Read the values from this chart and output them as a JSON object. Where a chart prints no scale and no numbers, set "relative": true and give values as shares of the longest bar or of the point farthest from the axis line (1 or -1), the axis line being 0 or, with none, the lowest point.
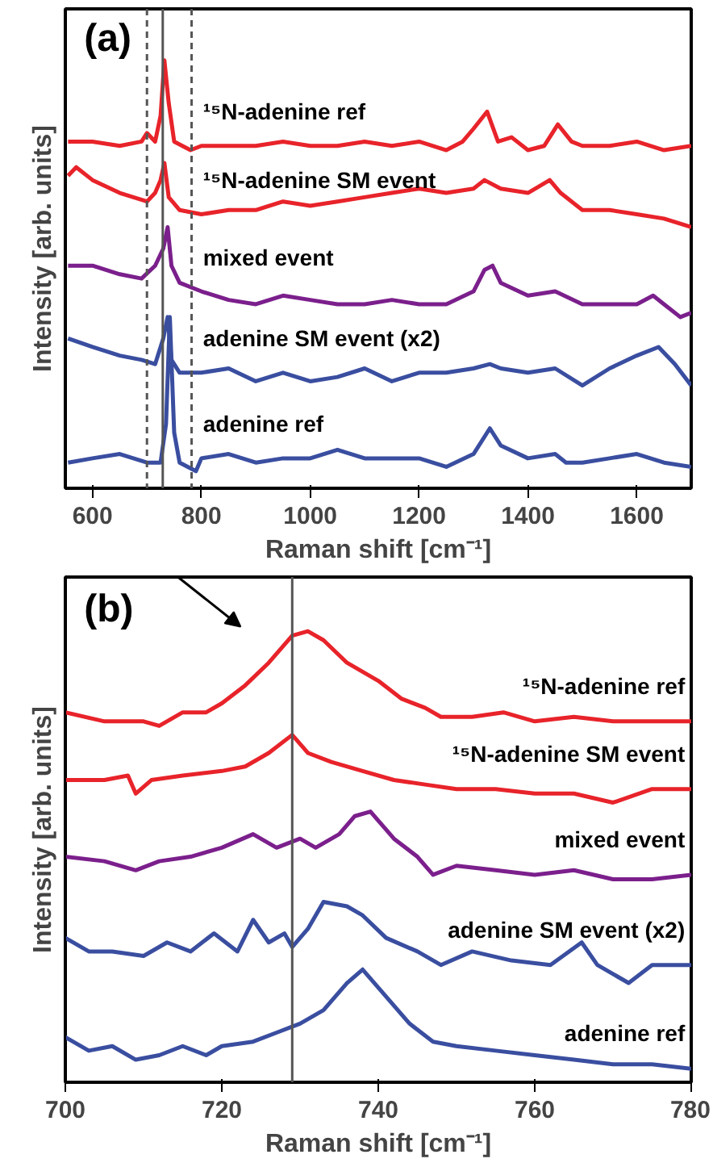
{
  "chart_data": [
    {
      "type": "line",
      "relative": true,
      "xlabel": "Raman shift [cm⁻¹]",
      "ylabel": "Intensity [arb. units]",
      "xlim": [
        550,
        1700
      ],
      "xticks": [
        600,
        800,
        1000,
        1200,
        1400,
        1600
      ],
      "tick_labels": "x",
      "annotations": [
        "(a)"
      ],
      "ref_lines": [
        {
          "axis": "x",
          "value": 700,
          "line_style": "dashed",
          "color": "#555555"
        },
        {
          "axis": "x",
          "value": 782,
          "line_style": "dashed",
          "color": "#555555"
        },
        {
          "axis": "x",
          "value": 729,
          "line_style": "solid",
          "color": "#555555"
        }
      ],
      "series": [
        {
          "name": "¹⁵N-adenine ref",
          "color": "#e8232a",
          "x": [
            555,
            600,
            650,
            690,
            700,
            715,
            725,
            732,
            740,
            750,
            780,
            800,
            850,
            900,
            950,
            1000,
            1050,
            1100,
            1150,
            1200,
            1250,
            1280,
            1300,
            1325,
            1345,
            1370,
            1400,
            1430,
            1455,
            1480,
            1500,
            1550,
            1600,
            1650,
            1700
          ],
          "values": [
            0.81,
            0.81,
            0.8,
            0.81,
            0.83,
            0.81,
            0.87,
            1.0,
            0.9,
            0.81,
            0.79,
            0.8,
            0.8,
            0.8,
            0.81,
            0.8,
            0.8,
            0.81,
            0.8,
            0.81,
            0.79,
            0.81,
            0.84,
            0.88,
            0.81,
            0.82,
            0.79,
            0.8,
            0.85,
            0.81,
            0.8,
            0.8,
            0.81,
            0.79,
            0.8
          ]
        },
        {
          "name": "¹⁵N-adenine SM event",
          "color": "#e8232a",
          "x": [
            555,
            570,
            600,
            650,
            700,
            715,
            725,
            732,
            740,
            760,
            800,
            850,
            900,
            950,
            1000,
            1050,
            1100,
            1150,
            1200,
            1250,
            1300,
            1320,
            1350,
            1400,
            1440,
            1460,
            1500,
            1550,
            1600,
            1650,
            1700
          ],
          "values": [
            0.73,
            0.75,
            0.72,
            0.69,
            0.67,
            0.69,
            0.72,
            0.76,
            0.68,
            0.65,
            0.64,
            0.65,
            0.65,
            0.67,
            0.66,
            0.67,
            0.68,
            0.69,
            0.7,
            0.69,
            0.7,
            0.72,
            0.7,
            0.69,
            0.72,
            0.69,
            0.65,
            0.65,
            0.64,
            0.63,
            0.61
          ]
        },
        {
          "name": "mixed event",
          "color": "#7b1f8c",
          "x": [
            555,
            600,
            650,
            690,
            715,
            730,
            738,
            745,
            760,
            800,
            850,
            900,
            950,
            1000,
            1050,
            1100,
            1150,
            1200,
            1250,
            1300,
            1320,
            1335,
            1350,
            1400,
            1450,
            1500,
            1550,
            1600,
            1630,
            1650,
            1680,
            1700
          ],
          "values": [
            0.52,
            0.52,
            0.5,
            0.49,
            0.52,
            0.56,
            0.61,
            0.52,
            0.48,
            0.46,
            0.44,
            0.43,
            0.45,
            0.44,
            0.43,
            0.43,
            0.44,
            0.43,
            0.43,
            0.46,
            0.51,
            0.52,
            0.48,
            0.45,
            0.46,
            0.43,
            0.43,
            0.43,
            0.45,
            0.43,
            0.4,
            0.41
          ]
        },
        {
          "name": "adenine SM event (x2)",
          "color": "#3a4ea0",
          "x": [
            555,
            600,
            650,
            690,
            715,
            730,
            738,
            745,
            760,
            800,
            850,
            900,
            950,
            1000,
            1050,
            1100,
            1150,
            1200,
            1250,
            1300,
            1330,
            1350,
            1400,
            1450,
            1500,
            1550,
            1600,
            1640,
            1670,
            1700
          ],
          "values": [
            0.35,
            0.33,
            0.31,
            0.3,
            0.29,
            0.35,
            0.4,
            0.3,
            0.27,
            0.27,
            0.28,
            0.25,
            0.27,
            0.25,
            0.26,
            0.28,
            0.25,
            0.27,
            0.27,
            0.28,
            0.29,
            0.28,
            0.27,
            0.28,
            0.24,
            0.28,
            0.31,
            0.33,
            0.29,
            0.24
          ]
        },
        {
          "name": "adenine ref",
          "color": "#3a4ea0",
          "x": [
            555,
            600,
            650,
            700,
            725,
            735,
            742,
            750,
            760,
            790,
            800,
            850,
            900,
            950,
            1000,
            1050,
            1100,
            1150,
            1200,
            1250,
            1300,
            1330,
            1350,
            1400,
            1450,
            1470,
            1500,
            1550,
            1600,
            1650,
            1700
          ],
          "values": [
            0.06,
            0.07,
            0.08,
            0.06,
            0.06,
            0.15,
            0.4,
            0.13,
            0.06,
            0.04,
            0.07,
            0.08,
            0.06,
            0.07,
            0.07,
            0.09,
            0.07,
            0.07,
            0.07,
            0.05,
            0.08,
            0.14,
            0.1,
            0.07,
            0.08,
            0.06,
            0.06,
            0.07,
            0.08,
            0.06,
            0.05
          ]
        }
      ]
    },
    {
      "type": "line",
      "relative": true,
      "xlabel": "Raman shift [cm⁻¹]",
      "ylabel": "Intensity [arb. units]",
      "xlim": [
        700,
        780
      ],
      "xticks": [
        700,
        720,
        740,
        760,
        780
      ],
      "tick_labels": "x",
      "annotations": [
        "(b)"
      ],
      "ref_lines": [
        {
          "axis": "x",
          "value": 729,
          "line_style": "solid",
          "color": "#555555"
        }
      ],
      "series": [
        {
          "name": "¹⁵N-adenine ref",
          "color": "#e8232a",
          "x": [
            700,
            705,
            710,
            712,
            715,
            718,
            720,
            723,
            726,
            729,
            731,
            733,
            736,
            740,
            743,
            746,
            748,
            752,
            756,
            760,
            765,
            770,
            775,
            780
          ],
          "values": [
            0.82,
            0.8,
            0.8,
            0.79,
            0.82,
            0.82,
            0.84,
            0.88,
            0.93,
            0.99,
            1.0,
            0.98,
            0.93,
            0.89,
            0.85,
            0.83,
            0.81,
            0.81,
            0.82,
            0.8,
            0.81,
            0.8,
            0.8,
            0.8
          ]
        },
        {
          "name": "¹⁵N-adenine SM event",
          "color": "#e8232a",
          "x": [
            700,
            705,
            708,
            709,
            711,
            715,
            720,
            723,
            726,
            729,
            731,
            734,
            738,
            742,
            746,
            750,
            755,
            760,
            765,
            770,
            775,
            780
          ],
          "values": [
            0.67,
            0.67,
            0.68,
            0.64,
            0.67,
            0.68,
            0.69,
            0.7,
            0.73,
            0.77,
            0.73,
            0.71,
            0.69,
            0.67,
            0.66,
            0.65,
            0.65,
            0.64,
            0.64,
            0.62,
            0.65,
            0.65
          ]
        },
        {
          "name": "mixed event",
          "color": "#7b1f8c",
          "x": [
            700,
            705,
            709,
            712,
            716,
            720,
            724,
            727,
            730,
            732,
            735,
            737,
            739,
            742,
            745,
            747,
            750,
            755,
            760,
            765,
            770,
            775,
            780
          ],
          "values": [
            0.5,
            0.49,
            0.47,
            0.49,
            0.5,
            0.52,
            0.55,
            0.52,
            0.54,
            0.52,
            0.55,
            0.59,
            0.6,
            0.54,
            0.5,
            0.46,
            0.48,
            0.47,
            0.46,
            0.47,
            0.45,
            0.45,
            0.46
          ]
        },
        {
          "name": "adenine SM event (x2)",
          "color": "#3a4ea0",
          "x": [
            700,
            703,
            706,
            710,
            713,
            716,
            719,
            722,
            724,
            726,
            728,
            729,
            731,
            733,
            736,
            738,
            741,
            745,
            748,
            752,
            757,
            762,
            766,
            768,
            772,
            775,
            780
          ],
          "values": [
            0.32,
            0.29,
            0.29,
            0.28,
            0.31,
            0.29,
            0.33,
            0.29,
            0.36,
            0.31,
            0.33,
            0.3,
            0.34,
            0.4,
            0.39,
            0.37,
            0.32,
            0.29,
            0.26,
            0.29,
            0.27,
            0.26,
            0.31,
            0.26,
            0.22,
            0.26,
            0.26
          ]
        },
        {
          "name": "adenine ref",
          "color": "#3a4ea0",
          "x": [
            700,
            703,
            706,
            709,
            712,
            715,
            718,
            720,
            724,
            727,
            730,
            733,
            736,
            738,
            741,
            744,
            747,
            750,
            755,
            760,
            765,
            770,
            775,
            780
          ],
          "values": [
            0.1,
            0.07,
            0.08,
            0.05,
            0.06,
            0.08,
            0.06,
            0.08,
            0.09,
            0.11,
            0.13,
            0.16,
            0.22,
            0.25,
            0.19,
            0.13,
            0.09,
            0.08,
            0.07,
            0.06,
            0.05,
            0.04,
            0.04,
            0.03
          ]
        }
      ]
    }
  ]
}
